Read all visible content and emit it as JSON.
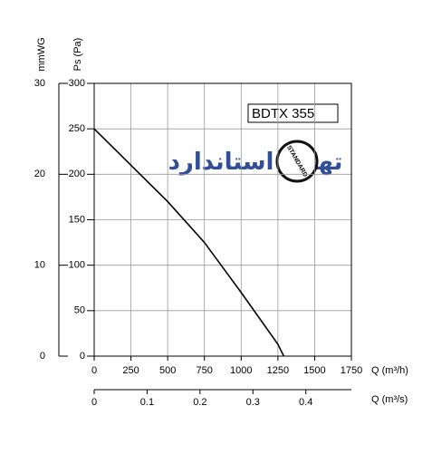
{
  "chart_data": {
    "type": "line",
    "title": "BDTX 355",
    "x_label": "Q (m³/h)",
    "x2_label": "Q (m³/s)",
    "y_label": "Ps (Pa)",
    "y2_label": "mmWG",
    "watermark": "تهویه استاندارد",
    "logo": "STANDARD",
    "xlim": [
      0,
      1750
    ],
    "xticks": [
      0,
      250,
      500,
      750,
      1000,
      1250,
      1500,
      1750
    ],
    "x2lim": [
      0,
      0.4861
    ],
    "x2ticks": [
      0,
      0.1,
      0.2,
      0.3,
      0.4
    ],
    "ylim": [
      0,
      300
    ],
    "yticks": [
      0,
      50,
      100,
      150,
      200,
      250,
      300
    ],
    "y2lim": [
      0,
      30
    ],
    "y2ticks": [
      0,
      10,
      20,
      30
    ],
    "grid": true,
    "series": [
      {
        "name": "BDTX 355",
        "color": "#000000",
        "x": [
          0,
          250,
          500,
          750,
          1000,
          1250,
          1290
        ],
        "values": [
          250,
          210,
          170,
          125,
          70,
          13,
          0
        ]
      }
    ]
  }
}
